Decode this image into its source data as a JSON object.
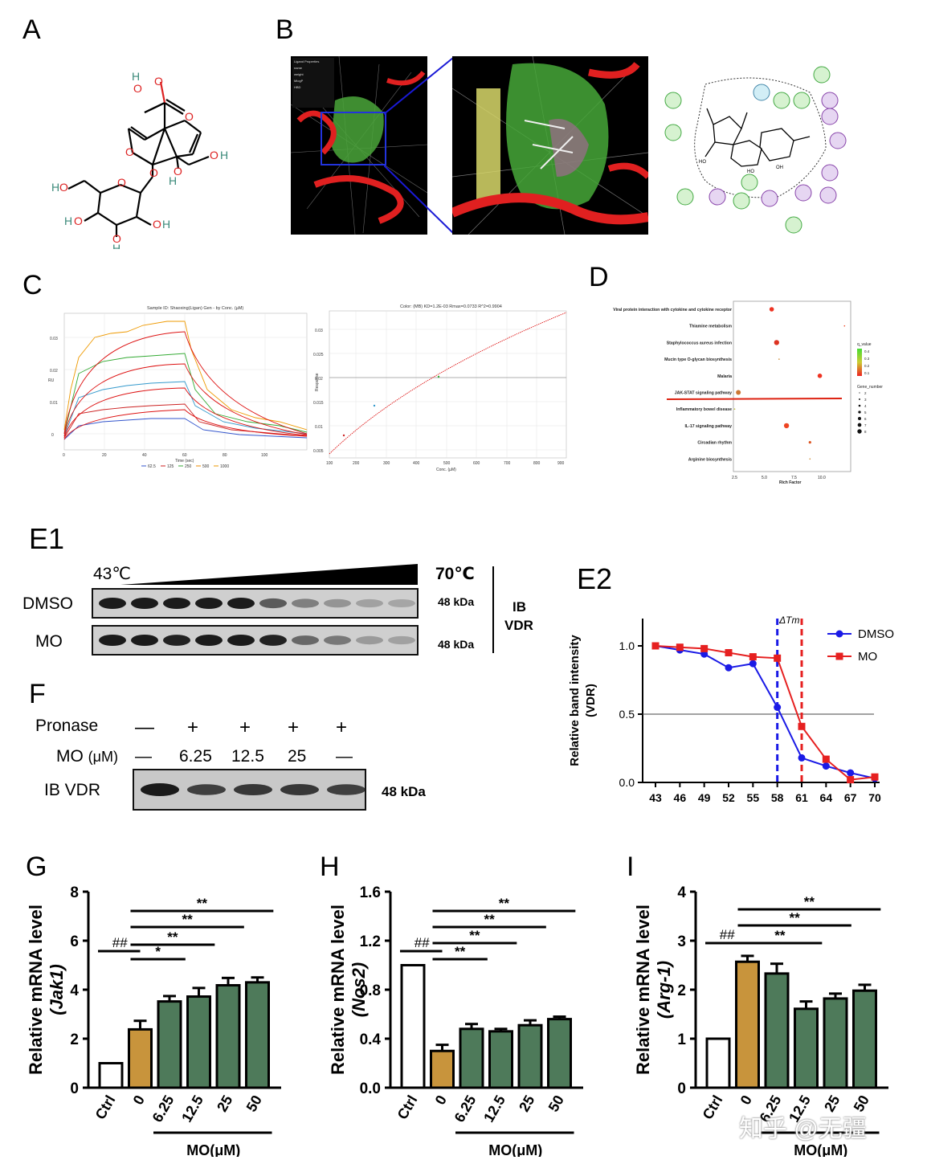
{
  "panels": {
    "A": "A",
    "B": "B",
    "C": "C",
    "D": "D",
    "E1": "E1",
    "E2": "E2",
    "F": "F",
    "G": "G",
    "H": "H",
    "I": "I"
  },
  "panelC": {
    "left_title": "Sample ID: Shaoxing(Ligan) Gen - by Conc. (µM)",
    "left_xlabel": "Time (sec)",
    "left_xticks": [
      "0",
      "20",
      "40",
      "60",
      "80",
      "100"
    ],
    "left_yticks": [
      "0",
      "0.01",
      "0.02",
      "0.03"
    ],
    "left_ylabel": "RU",
    "legend": [
      "62.5",
      "125",
      "250",
      "500",
      "1000"
    ],
    "legend_colors": [
      "#3355cc",
      "#cc2222",
      "#33aa33",
      "#ee8800",
      "#ee9900"
    ],
    "right_title": "Color: (MB) KD=1.2E-03 Rmax=0.0733 R^2=0.9904",
    "right_xlabel": "Conc. (µM)",
    "right_ylabel": "Response",
    "right_xticks": [
      "100",
      "200",
      "300",
      "400",
      "500",
      "600",
      "700",
      "800",
      "900"
    ],
    "right_yticks": [
      "0.005",
      "0.01",
      "0.015",
      "0.02",
      "0.025",
      "0.03"
    ]
  },
  "panelD": {
    "pathways": [
      "Viral protein interaction with cytokine and cytokine receptor",
      "Thiamine metabolism",
      "Staphylococcus aureus infection",
      "Mucin type O-glycan biosynthesis",
      "Malaria",
      "JAK-STAT signaling pathway",
      "Inflammatory bowel disease",
      "IL-17 signaling pathway",
      "Circadian rhythm",
      "Arginine biosynthesis"
    ],
    "rich_factor": [
      5.6,
      11.5,
      6.0,
      6.2,
      9.5,
      2.9,
      2.6,
      6.8,
      8.7,
      8.7
    ],
    "x_label": "Rich Factor",
    "x_ticks": [
      "2.5",
      "5.0",
      "7.5",
      "10.0"
    ],
    "legend_q": "q_value",
    "legend_q_ticks": [
      "0.4",
      "0.3",
      "0.2",
      "0.1"
    ],
    "legend_gene": "Gene_number",
    "legend_gene_ticks": [
      "2",
      "3",
      "4",
      "5",
      "6",
      "7",
      "8"
    ]
  },
  "panelE1": {
    "temp_start": "43℃",
    "temp_end": "70℃",
    "rows": [
      "DMSO",
      "MO"
    ],
    "kda": [
      "48 kDa",
      "48 kDa"
    ],
    "ib": "IB",
    "vdr": "VDR"
  },
  "panelE2": {
    "ylabel1": "Relative  band intensity",
    "ylabel2": "(VDR)",
    "yticks": [
      "0.0",
      "0.5",
      "1.0"
    ],
    "xticks": [
      "43",
      "46",
      "49",
      "52",
      "55",
      "58",
      "61",
      "64",
      "67",
      "70"
    ],
    "delta_tm": "ΔTm",
    "legend": [
      "DMSO",
      "MO"
    ],
    "colors": [
      "#1a1ae6",
      "#e62020"
    ]
  },
  "panelF": {
    "pronase_label": "Pronase",
    "pronase": [
      "—",
      "+",
      "+",
      "+",
      "+"
    ],
    "mo_label": "MO",
    "mo_unit": "(μM)",
    "mo": [
      "—",
      "6.25",
      "12.5",
      "25",
      "—"
    ],
    "ib": "IB VDR",
    "kda": "48 kDa"
  },
  "chart_data": [
    {
      "type": "line",
      "title": "",
      "xlabel": "",
      "ylabel": "Relative band intensity (VDR)",
      "x": [
        43,
        46,
        49,
        52,
        55,
        58,
        61,
        64,
        67,
        70
      ],
      "ylim": [
        0,
        1.2
      ],
      "series": [
        {
          "name": "DMSO",
          "values": [
            1.0,
            0.97,
            0.94,
            0.84,
            0.87,
            0.55,
            0.18,
            0.12,
            0.07,
            0.03
          ]
        },
        {
          "name": "MO",
          "values": [
            1.0,
            0.99,
            0.98,
            0.95,
            0.92,
            0.91,
            0.41,
            0.17,
            0.02,
            0.04
          ]
        }
      ],
      "reference_lines": {
        "y": 0.5,
        "dmso_tm": 58,
        "mo_tm": 61
      }
    },
    {
      "type": "bar",
      "panel": "G",
      "ylabel": "Relative mRNA level",
      "ylabel_gene": "(Jak1)",
      "categories": [
        "Ctrl",
        "0",
        "6.25",
        "12.5",
        "25",
        "50"
      ],
      "values": [
        1.0,
        2.38,
        3.52,
        3.72,
        4.18,
        4.3
      ],
      "errors": [
        0.0,
        0.35,
        0.22,
        0.35,
        0.3,
        0.2
      ],
      "colors": [
        "#ffffff",
        "#c8943c",
        "#4e7a5a",
        "#4e7a5a",
        "#4e7a5a",
        "#4e7a5a"
      ],
      "ylim": [
        0,
        8
      ],
      "yticks": [
        "0",
        "2",
        "4",
        "6",
        "8"
      ],
      "group_label": "MO(μM)",
      "sig_hash": "##",
      "sig": [
        "*",
        "**",
        "**",
        "**"
      ]
    },
    {
      "type": "bar",
      "panel": "H",
      "ylabel": "Relative mRNA level",
      "ylabel_gene": "(Nos2)",
      "categories": [
        "Ctrl",
        "0",
        "6.25",
        "12.5",
        "25",
        "50"
      ],
      "values": [
        1.0,
        0.3,
        0.48,
        0.46,
        0.51,
        0.56
      ],
      "errors": [
        0.0,
        0.05,
        0.04,
        0.02,
        0.04,
        0.02
      ],
      "colors": [
        "#ffffff",
        "#c8943c",
        "#4e7a5a",
        "#4e7a5a",
        "#4e7a5a",
        "#4e7a5a"
      ],
      "ylim": [
        0,
        1.6
      ],
      "yticks": [
        "0.0",
        "0.4",
        "0.8",
        "1.2",
        "1.6"
      ],
      "group_label": "MO(μM)",
      "sig_hash": "##",
      "sig": [
        "**",
        "**",
        "**",
        "**"
      ]
    },
    {
      "type": "bar",
      "panel": "I",
      "ylabel": "Relative mRNA level",
      "ylabel_gene": "(Arg-1)",
      "categories": [
        "Ctrl",
        "0",
        "6.25",
        "12.5",
        "25",
        "50"
      ],
      "values": [
        1.0,
        2.57,
        2.33,
        1.61,
        1.82,
        1.98
      ],
      "errors": [
        0.0,
        0.12,
        0.2,
        0.15,
        0.1,
        0.12
      ],
      "colors": [
        "#ffffff",
        "#c8943c",
        "#4e7a5a",
        "#4e7a5a",
        "#4e7a5a",
        "#4e7a5a"
      ],
      "ylim": [
        0,
        4
      ],
      "yticks": [
        "0",
        "1",
        "2",
        "3",
        "4"
      ],
      "group_label": "MO(μM)",
      "sig_hash": "##",
      "sig": [
        "**",
        "**",
        "**"
      ]
    }
  ],
  "watermark": "知乎 @无疆"
}
